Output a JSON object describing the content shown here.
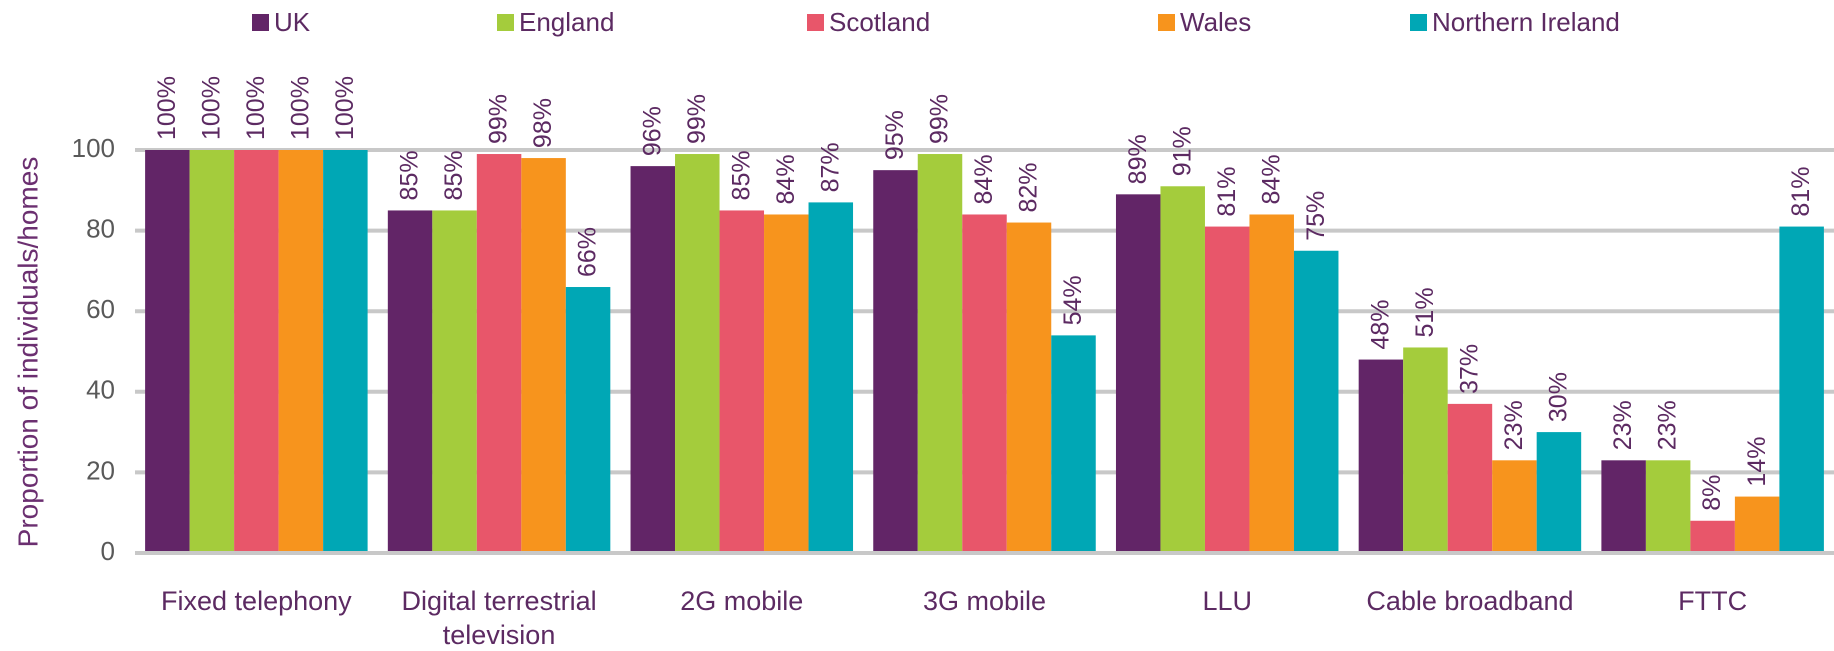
{
  "chart_data": {
    "type": "bar",
    "y_axis_label": "Proportion of individuals/homes",
    "categories": [
      "Fixed telephony",
      "Digital terrestrial television",
      "2G mobile",
      "3G mobile",
      "LLU",
      "Cable broadband",
      "FTTC"
    ],
    "series": [
      {
        "name": "UK",
        "color": "#622567",
        "values": [
          100,
          85,
          96,
          95,
          89,
          48,
          23
        ],
        "value_labels": [
          "100%",
          "85%",
          "96%",
          "95%",
          "89%",
          "48%",
          "23%"
        ]
      },
      {
        "name": "England",
        "color": "#a4cc3c",
        "values": [
          100,
          85,
          99,
          99,
          91,
          51,
          23
        ],
        "value_labels": [
          "100%",
          "85%",
          "99%",
          "99%",
          "91%",
          "51%",
          "23%"
        ]
      },
      {
        "name": "Scotland",
        "color": "#e8566a",
        "values": [
          100,
          99,
          85,
          84,
          81,
          37,
          8
        ],
        "value_labels": [
          "100%",
          "99%",
          "85%",
          "84%",
          "81%",
          "37%",
          "8%"
        ]
      },
      {
        "name": "Wales",
        "color": "#f7941d",
        "values": [
          100,
          98,
          84,
          82,
          84,
          23,
          14
        ],
        "value_labels": [
          "100%",
          "98%",
          "84%",
          "82%",
          "84%",
          "23%",
          "14%"
        ]
      },
      {
        "name": "Northern Ireland",
        "color": "#00a7b5",
        "values": [
          100,
          66,
          87,
          54,
          75,
          30,
          81
        ],
        "value_labels": [
          "100%",
          "66%",
          "87%",
          "54%",
          "75%",
          "30%",
          "81%"
        ]
      }
    ],
    "ylim": [
      0,
      100
    ],
    "yticks": [
      0,
      20,
      40,
      60,
      80,
      100
    ],
    "grid": true,
    "legend": "top"
  }
}
